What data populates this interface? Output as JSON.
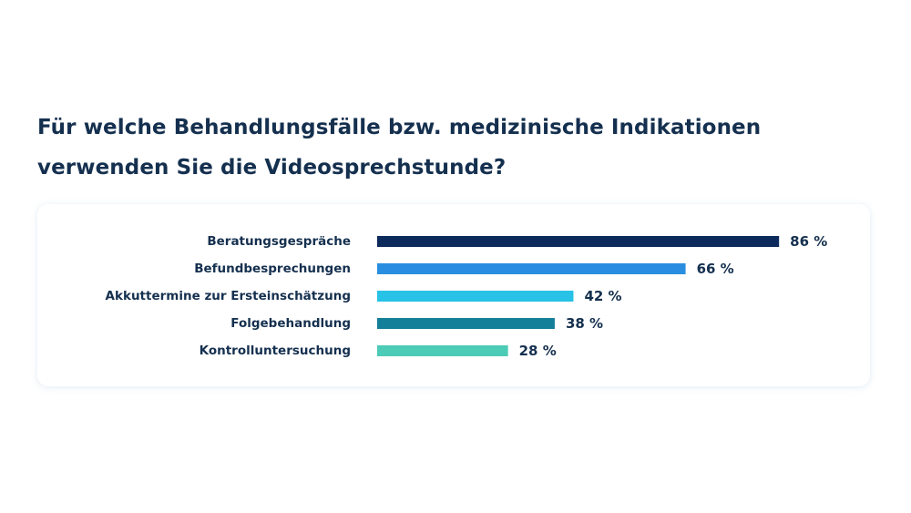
{
  "chart_data": {
    "type": "bar",
    "orientation": "horizontal",
    "title": "Für welche Behandlungsfälle bzw. medizinische Indikationen verwenden Sie die Videosprechstunde?",
    "categories": [
      "Beratungsgespräche",
      "Befundbesprechungen",
      "Akkuttermine zur Ersteinschätzung",
      "Folgebehandlung",
      "Kontrolluntersuchung"
    ],
    "values": [
      86,
      66,
      42,
      38,
      28
    ],
    "value_labels": [
      "86 %",
      "66 %",
      "42 %",
      "38 %",
      "28 %"
    ],
    "bar_colors": [
      "#0c2a5c",
      "#2a8ee0",
      "#27c2e6",
      "#147f98",
      "#4ccbb6"
    ],
    "xlim": [
      0,
      100
    ],
    "grid": false,
    "legend": "none"
  }
}
